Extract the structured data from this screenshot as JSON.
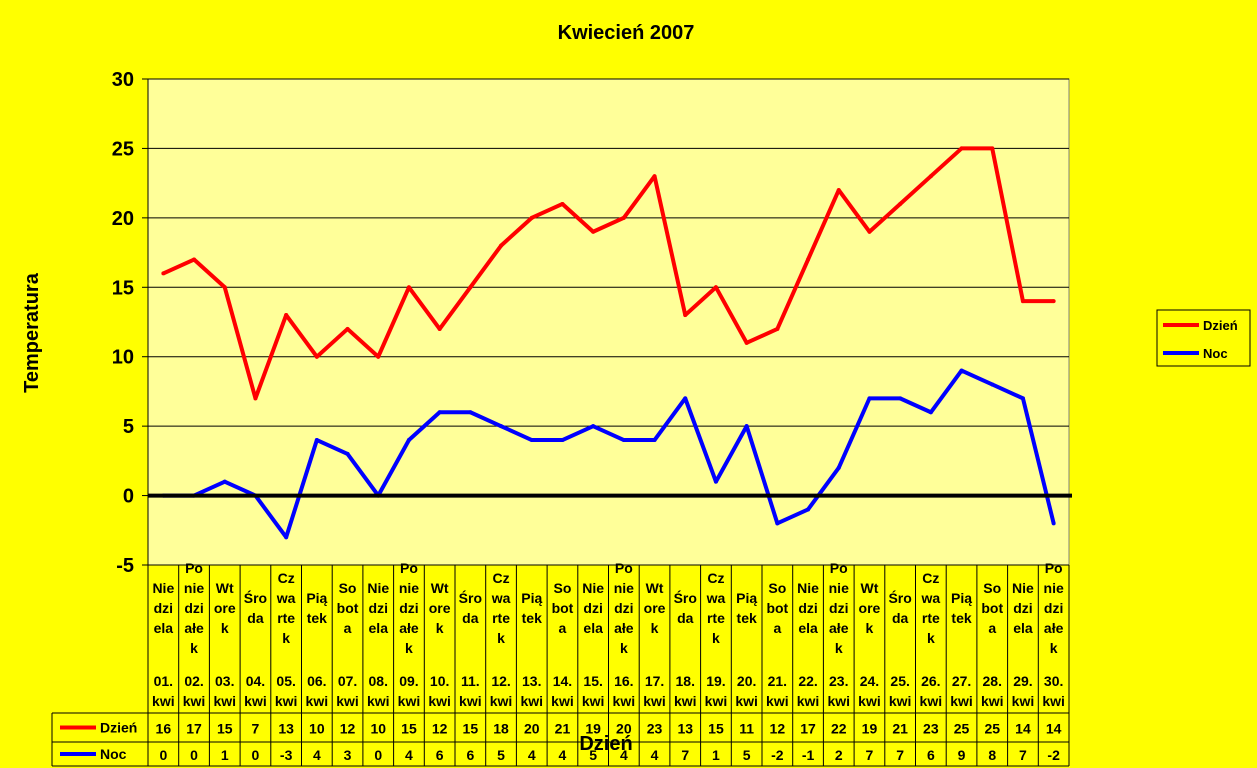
{
  "chart_data": {
    "type": "line",
    "title": "Kwiecień 2007",
    "xlabel": "Dzień",
    "ylabel": "Temperatura",
    "ylim": [
      -5,
      30
    ],
    "yticks": [
      "30",
      "25",
      "20",
      "15",
      "10",
      "5",
      "0",
      "-5"
    ],
    "grid": true,
    "legend_position": "right",
    "categories": [
      {
        "day": [
          "Nie",
          "dzi",
          "ela"
        ],
        "date": [
          "01.",
          "kwi"
        ]
      },
      {
        "day": [
          "Po",
          "nie",
          "dzi",
          "ałe",
          "k"
        ],
        "date": [
          "02.",
          "kwi"
        ]
      },
      {
        "day": [
          "Wt",
          "ore",
          "k"
        ],
        "date": [
          "03.",
          "kwi"
        ]
      },
      {
        "day": [
          "Śro",
          "da"
        ],
        "date": [
          "04.",
          "kwi"
        ]
      },
      {
        "day": [
          "Cz",
          "wa",
          "rte",
          "k"
        ],
        "date": [
          "05.",
          "kwi"
        ]
      },
      {
        "day": [
          "Pią",
          "tek"
        ],
        "date": [
          "06.",
          "kwi"
        ]
      },
      {
        "day": [
          "So",
          "bot",
          "a"
        ],
        "date": [
          "07.",
          "kwi"
        ]
      },
      {
        "day": [
          "Nie",
          "dzi",
          "ela"
        ],
        "date": [
          "08.",
          "kwi"
        ]
      },
      {
        "day": [
          "Po",
          "nie",
          "dzi",
          "ałe",
          "k"
        ],
        "date": [
          "09.",
          "kwi"
        ]
      },
      {
        "day": [
          "Wt",
          "ore",
          "k"
        ],
        "date": [
          "10.",
          "kwi"
        ]
      },
      {
        "day": [
          "Śro",
          "da"
        ],
        "date": [
          "11.",
          "kwi"
        ]
      },
      {
        "day": [
          "Cz",
          "wa",
          "rte",
          "k"
        ],
        "date": [
          "12.",
          "kwi"
        ]
      },
      {
        "day": [
          "Pią",
          "tek"
        ],
        "date": [
          "13.",
          "kwi"
        ]
      },
      {
        "day": [
          "So",
          "bot",
          "a"
        ],
        "date": [
          "14.",
          "kwi"
        ]
      },
      {
        "day": [
          "Nie",
          "dzi",
          "ela"
        ],
        "date": [
          "15.",
          "kwi"
        ]
      },
      {
        "day": [
          "Po",
          "nie",
          "dzi",
          "ałe",
          "k"
        ],
        "date": [
          "16.",
          "kwi"
        ]
      },
      {
        "day": [
          "Wt",
          "ore",
          "k"
        ],
        "date": [
          "17.",
          "kwi"
        ]
      },
      {
        "day": [
          "Śro",
          "da"
        ],
        "date": [
          "18.",
          "kwi"
        ]
      },
      {
        "day": [
          "Cz",
          "wa",
          "rte",
          "k"
        ],
        "date": [
          "19.",
          "kwi"
        ]
      },
      {
        "day": [
          "Pią",
          "tek"
        ],
        "date": [
          "20.",
          "kwi"
        ]
      },
      {
        "day": [
          "So",
          "bot",
          "a"
        ],
        "date": [
          "21.",
          "kwi"
        ]
      },
      {
        "day": [
          "Nie",
          "dzi",
          "ela"
        ],
        "date": [
          "22.",
          "kwi"
        ]
      },
      {
        "day": [
          "Po",
          "nie",
          "dzi",
          "ałe",
          "k"
        ],
        "date": [
          "23.",
          "kwi"
        ]
      },
      {
        "day": [
          "Wt",
          "ore",
          "k"
        ],
        "date": [
          "24.",
          "kwi"
        ]
      },
      {
        "day": [
          "Śro",
          "da"
        ],
        "date": [
          "25.",
          "kwi"
        ]
      },
      {
        "day": [
          "Cz",
          "wa",
          "rte",
          "k"
        ],
        "date": [
          "26.",
          "kwi"
        ]
      },
      {
        "day": [
          "Pią",
          "tek"
        ],
        "date": [
          "27.",
          "kwi"
        ]
      },
      {
        "day": [
          "So",
          "bot",
          "a"
        ],
        "date": [
          "28.",
          "kwi"
        ]
      },
      {
        "day": [
          "Nie",
          "dzi",
          "ela"
        ],
        "date": [
          "29.",
          "kwi"
        ]
      },
      {
        "day": [
          "Po",
          "nie",
          "dzi",
          "ałe",
          "k"
        ],
        "date": [
          "30.",
          "kwi"
        ]
      }
    ],
    "series": [
      {
        "name": "Dzień",
        "color": "#FF0000",
        "values": [
          16,
          17,
          15,
          7,
          13,
          10,
          12,
          10,
          15,
          12,
          15,
          18,
          20,
          21,
          19,
          20,
          23,
          13,
          15,
          11,
          12,
          17,
          22,
          19,
          21,
          23,
          25,
          25,
          14,
          14
        ]
      },
      {
        "name": "Noc",
        "color": "#0000FF",
        "values": [
          0,
          0,
          1,
          0,
          -3,
          4,
          3,
          0,
          4,
          6,
          6,
          5,
          4,
          4,
          5,
          4,
          4,
          7,
          1,
          5,
          -2,
          -1,
          2,
          7,
          7,
          6,
          9,
          8,
          7,
          -2
        ]
      }
    ],
    "colors": {
      "background": "#FFFF00",
      "plot_area": "#FFFF99",
      "grid": "#000000",
      "zero_line": "#000000"
    }
  }
}
